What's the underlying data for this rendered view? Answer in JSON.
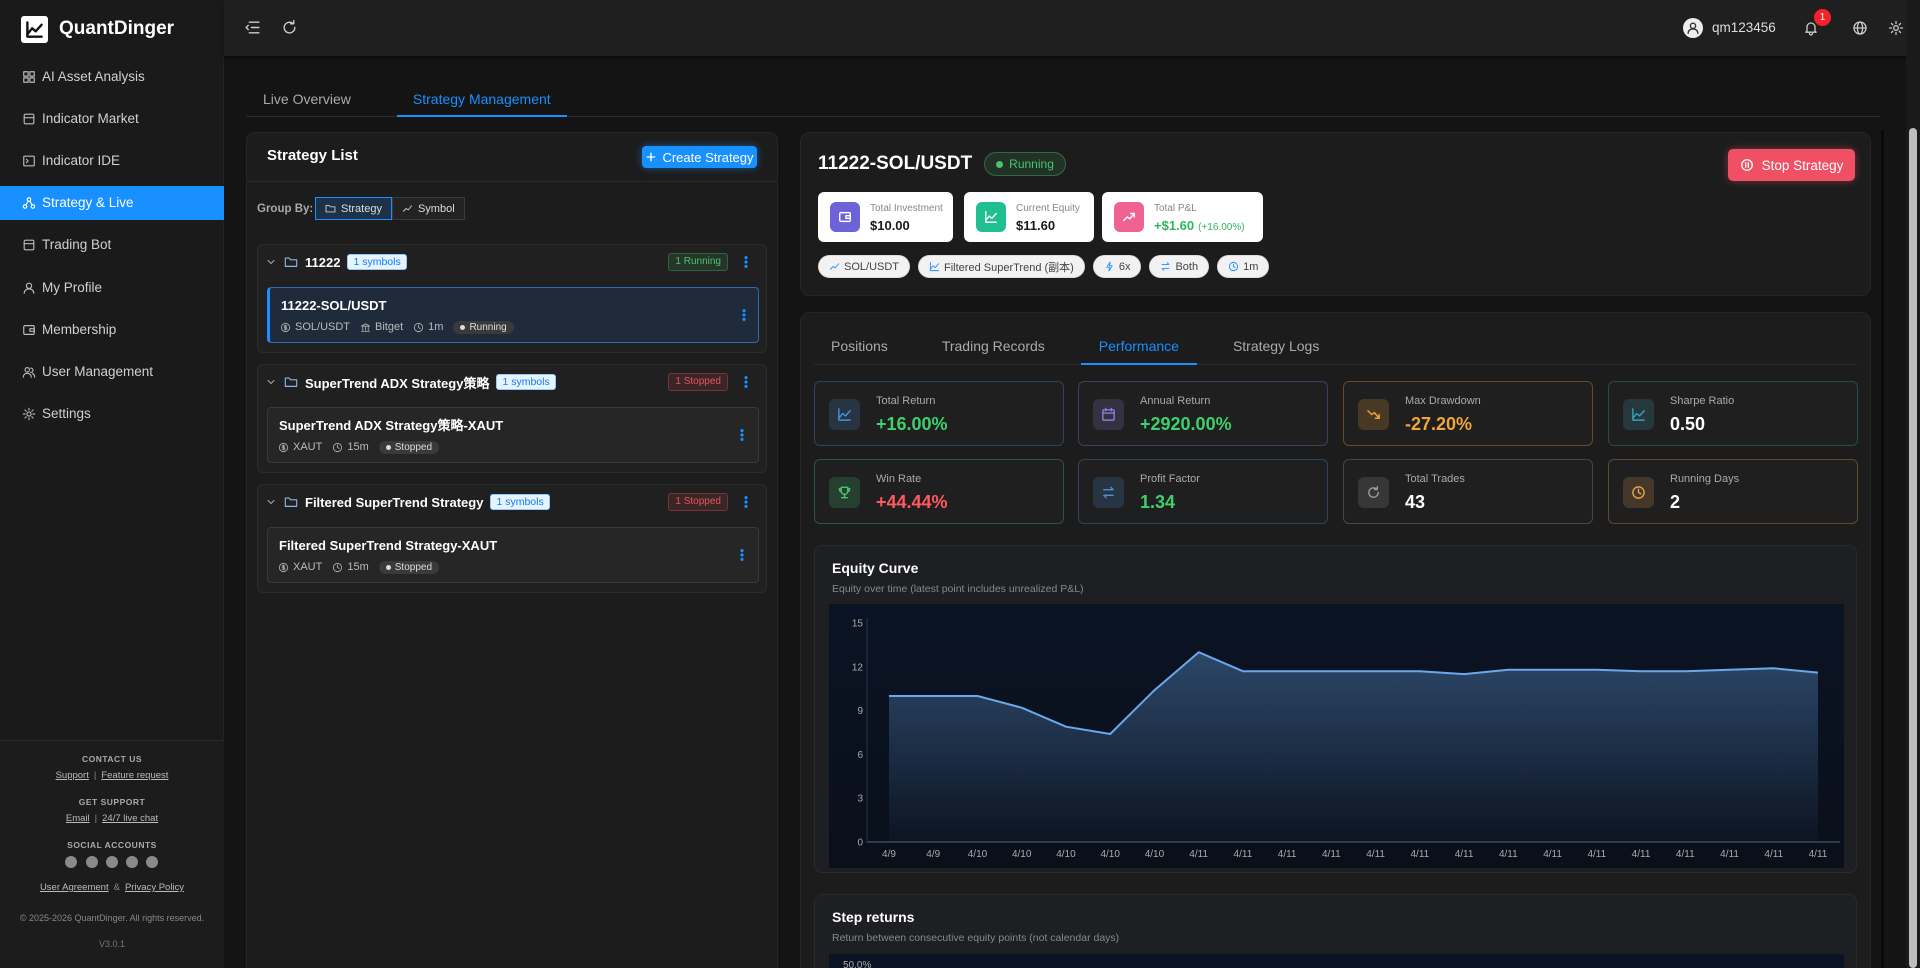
{
  "sidebar": {
    "brand": "QuantDinger",
    "nav": [
      {
        "label": "AI Asset Analysis"
      },
      {
        "label": "Indicator Market"
      },
      {
        "label": "Indicator IDE"
      },
      {
        "label": "Strategy & Live",
        "active": true
      },
      {
        "label": "Trading Bot"
      },
      {
        "label": "My Profile"
      },
      {
        "label": "Membership"
      },
      {
        "label": "User Management"
      },
      {
        "label": "Settings"
      }
    ],
    "footer": {
      "contact_title": "CONTACT US",
      "contact_links": [
        "Support",
        "Feature request"
      ],
      "support_title": "GET SUPPORT",
      "support_links": [
        "Email",
        "24/7 live chat"
      ],
      "link_separator": "|",
      "social_title": "SOCIAL ACCOUNTS",
      "legal_links": [
        "User Agreement",
        "Privacy Policy"
      ],
      "legal_separator": "&",
      "copyright": "© 2025-2026 QuantDinger. All rights reserved.",
      "version": "V3.0.1"
    }
  },
  "header": {
    "username": "qm123456",
    "notification_count": 1
  },
  "page_tabs": [
    {
      "label": "Live Overview"
    },
    {
      "label": "Strategy Management",
      "active": true
    }
  ],
  "strategy_list": {
    "title": "Strategy List",
    "create_button": "Create Strategy",
    "group_by_label": "Group By:",
    "group_by_options": [
      {
        "label": "Strategy",
        "active": true
      },
      {
        "label": "Symbol"
      }
    ],
    "groups": [
      {
        "name": "11222",
        "symbols_badge": "1 symbols",
        "status_badge": "1 Running",
        "status_color": "#49c46e",
        "strategies": [
          {
            "name": "11222-SOL/USDT",
            "meta": [
              "SOL/USDT",
              "Bitget",
              "1m"
            ],
            "status": "Running",
            "selected": true
          }
        ]
      },
      {
        "name": "SuperTrend ADX Strategy策略",
        "symbols_badge": "1 symbols",
        "status_badge": "1 Stopped",
        "status_color": "#e8545a",
        "strategies": [
          {
            "name": "SuperTrend ADX Strategy策略-XAUT",
            "meta": [
              "XAUT",
              "15m"
            ],
            "status": "Stopped"
          }
        ]
      },
      {
        "name": "Filtered SuperTrend Strategy",
        "symbols_badge": "1 symbols",
        "status_badge": "1 Stopped",
        "status_color": "#e8545a",
        "strategies": [
          {
            "name": "Filtered SuperTrend Strategy-XAUT",
            "meta": [
              "XAUT",
              "15m"
            ],
            "status": "Stopped"
          }
        ]
      }
    ]
  },
  "detail": {
    "title": "11222-SOL/USDT",
    "status": "Running",
    "stop_button": "Stop Strategy",
    "stats": [
      {
        "label": "Total Investment",
        "value": "$10.00",
        "color": "#6c63d9"
      },
      {
        "label": "Current Equity",
        "value": "$11.60",
        "color": "#1fbf8f"
      },
      {
        "label": "Total P&L",
        "value": "+$1.60",
        "extra": "(+16.00%)",
        "color": "#f06292"
      }
    ],
    "tags": [
      "SOL/USDT",
      "Filtered SuperTrend (副本)",
      "6x",
      "Both",
      "1m"
    ]
  },
  "performance": {
    "tabs": [
      {
        "label": "Positions"
      },
      {
        "label": "Trading Records"
      },
      {
        "label": "Performance",
        "active": true
      },
      {
        "label": "Strategy Logs"
      }
    ],
    "metrics": [
      {
        "label": "Total Return",
        "value": "+16.00%",
        "color": "#3fcf6b",
        "accent": "#4a90d9"
      },
      {
        "label": "Annual Return",
        "value": "+2920.00%",
        "color": "#3fcf6b",
        "accent": "#8e7cd9"
      },
      {
        "label": "Max Drawdown",
        "value": "-27.20%",
        "color": "#f0a53a",
        "accent": "#f0a53a"
      },
      {
        "label": "Sharpe Ratio",
        "value": "0.50",
        "color": "#ffffff",
        "accent": "#3aa0b8"
      },
      {
        "label": "Win Rate",
        "value": "+44.44%",
        "color": "#ff5a5f",
        "accent": "#49c46e"
      },
      {
        "label": "Profit Factor",
        "value": "1.34",
        "color": "#3fcf6b",
        "accent": "#4a90d9"
      },
      {
        "label": "Total Trades",
        "value": "43",
        "color": "#ffffff",
        "accent": "#9a9a9a"
      },
      {
        "label": "Running Days",
        "value": "2",
        "color": "#ffffff",
        "accent": "#e0a050"
      }
    ]
  },
  "chart_data": {
    "type": "line",
    "title": "Equity Curve",
    "subtitle": "Equity over time (latest point includes unrealized P&L)",
    "categories": [
      "4/9",
      "4/9",
      "4/10",
      "4/10",
      "4/10",
      "4/10",
      "4/10",
      "4/11",
      "4/11",
      "4/11",
      "4/11",
      "4/11",
      "4/11",
      "4/11",
      "4/11",
      "4/11",
      "4/11",
      "4/11",
      "4/11",
      "4/11",
      "4/11",
      "4/11"
    ],
    "values": [
      10,
      10,
      10,
      9.2,
      7.9,
      7.4,
      10.4,
      13,
      11.7,
      11.7,
      11.7,
      11.7,
      11.7,
      11.5,
      11.8,
      11.8,
      11.8,
      11.7,
      11.7,
      11.8,
      11.9,
      11.6
    ],
    "ylim": [
      0,
      15
    ],
    "yticks": [
      0,
      3,
      6,
      9,
      12,
      15
    ],
    "color": "#6aa8ec",
    "grid": false
  },
  "step_returns": {
    "title": "Step returns",
    "subtitle": "Return between consecutive equity points (not calendar days)",
    "top_tick_label": "50.0%"
  }
}
